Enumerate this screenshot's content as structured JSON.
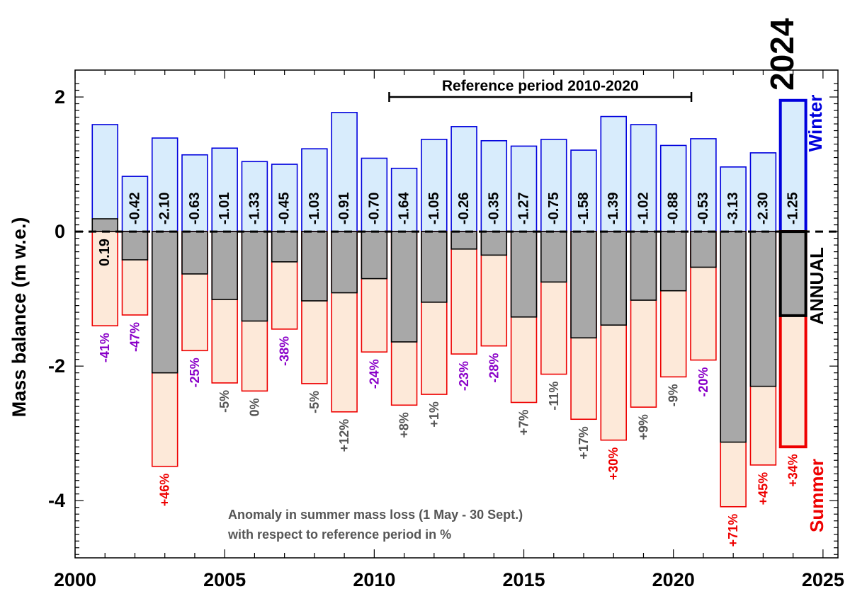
{
  "chart_data": {
    "type": "bar",
    "ylabel": "Mass balance (m w.e.)",
    "xlim": [
      2000,
      2025.5
    ],
    "ylim": [
      -4.85,
      2.4
    ],
    "x_ticks": [
      2000,
      2005,
      2010,
      2015,
      2020,
      2025
    ],
    "y_ticks": [
      2,
      0,
      -2,
      -4
    ],
    "y_tick_labels": [
      "2",
      "0",
      "-2",
      "-4"
    ],
    "x": [
      2001,
      2002,
      2003,
      2004,
      2005,
      2006,
      2007,
      2008,
      2009,
      2010,
      2011,
      2012,
      2013,
      2014,
      2015,
      2016,
      2017,
      2018,
      2019,
      2020,
      2021,
      2022,
      2023,
      2024
    ],
    "series": [
      {
        "name": "Winter",
        "color": "#0000dd",
        "fill": "#d8ecfc",
        "values": [
          1.59,
          0.82,
          1.39,
          1.14,
          1.24,
          1.04,
          1.0,
          1.23,
          1.77,
          1.09,
          0.94,
          1.37,
          1.56,
          1.35,
          1.27,
          1.37,
          1.21,
          1.71,
          1.59,
          1.28,
          1.38,
          0.96,
          1.17,
          1.95
        ]
      },
      {
        "name": "Summer",
        "color": "#ee0000",
        "fill": "#fde9d9",
        "values": [
          -1.4,
          -1.24,
          -3.49,
          -1.77,
          -2.25,
          -2.37,
          -1.45,
          -2.26,
          -2.68,
          -1.79,
          -2.58,
          -2.42,
          -1.82,
          -1.7,
          -2.54,
          -2.12,
          -2.79,
          -3.1,
          -2.61,
          -2.16,
          -1.91,
          -4.09,
          -3.47,
          -3.2
        ]
      },
      {
        "name": "ANNUAL",
        "color": "#000000",
        "fill": "#a8a8a8",
        "values": [
          0.19,
          -0.42,
          -2.1,
          -0.63,
          -1.01,
          -1.33,
          -0.45,
          -1.03,
          -0.91,
          -0.7,
          -1.64,
          -1.05,
          -0.26,
          -0.35,
          -1.27,
          -0.75,
          -1.58,
          -1.39,
          -1.02,
          -0.88,
          -0.53,
          -3.13,
          -2.3,
          -1.25
        ]
      }
    ],
    "annual_labels": [
      "0.19",
      "-0.42",
      "-2.10",
      "-0.63",
      "-1.01",
      "-1.33",
      "-0.45",
      "-1.03",
      "-0.91",
      "-0.70",
      "-1.64",
      "-1.05",
      "-0.26",
      "-0.35",
      "-1.27",
      "-0.75",
      "-1.58",
      "-1.39",
      "-1.02",
      "-0.88",
      "-0.53",
      "-3.13",
      "-2.30",
      "-1.25"
    ],
    "anomaly_labels": [
      "-41%",
      "-47%",
      "+46%",
      "-25%",
      "-5%",
      "0%",
      "-38%",
      "-5%",
      "+12%",
      "-24%",
      "+8%",
      "+1%",
      "-23%",
      "-28%",
      "+7%",
      "-11%",
      "+17%",
      "+30%",
      "+9%",
      "-9%",
      "-20%",
      "+71%",
      "+45%",
      "+34%"
    ],
    "anomaly_colors": [
      "#8a00c8",
      "#8a00c8",
      "#ee0000",
      "#8a00c8",
      "#555555",
      "#555555",
      "#8a00c8",
      "#555555",
      "#555555",
      "#8a00c8",
      "#555555",
      "#555555",
      "#8a00c8",
      "#8a00c8",
      "#555555",
      "#555555",
      "#555555",
      "#ee0000",
      "#555555",
      "#555555",
      "#8a00c8",
      "#ee0000",
      "#ee0000",
      "#ee0000"
    ],
    "highlight_year": "2024",
    "reference_period": {
      "label": "Reference period 2010-2020",
      "start": 2010.5,
      "end": 2020.6
    },
    "note": [
      "Anomaly in summer mass loss (1 May - 30 Sept.)",
      "with respect to reference period in %"
    ],
    "side_labels": {
      "winter": "Winter",
      "annual": "ANNUAL",
      "summer": "Summer"
    },
    "zero_line": "dashed",
    "grid": false
  }
}
